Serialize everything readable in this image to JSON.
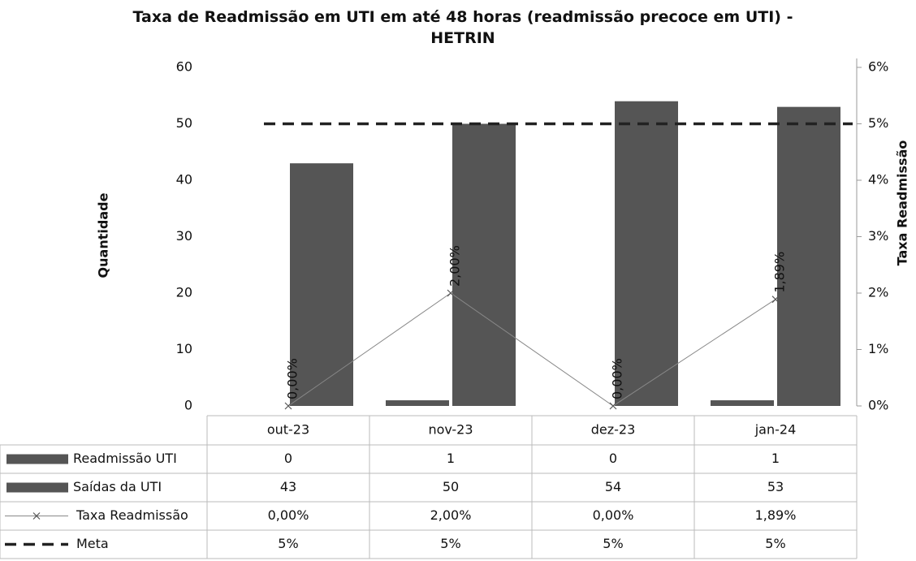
{
  "chart_data": {
    "type": "bar",
    "title": "Taxa de Readmissão em UTI em até 48 horas (readmissão precoce em UTI) - HETRIN",
    "ylabel": "Quantidade",
    "y2label": "Taxa Readmissão",
    "categories": [
      "out-23",
      "nov-23",
      "dez-23",
      "jan-24"
    ],
    "ylim": [
      0,
      60
    ],
    "yticks": [
      0,
      10,
      20,
      30,
      40,
      50,
      60
    ],
    "y2lim": [
      0,
      6
    ],
    "y2ticks": [
      {
        "value": 0,
        "label": "0%"
      },
      {
        "value": 1,
        "label": "1%"
      },
      {
        "value": 2,
        "label": "2%"
      },
      {
        "value": 3,
        "label": "3%"
      },
      {
        "value": 4,
        "label": "4%"
      },
      {
        "value": 5,
        "label": "5%"
      },
      {
        "value": 6,
        "label": "6%"
      }
    ],
    "series": [
      {
        "name": "Readmissão UTI",
        "type": "bar",
        "color": "#555555",
        "values": [
          0,
          1,
          0,
          1
        ]
      },
      {
        "name": "Saídas da UTI",
        "type": "bar",
        "color": "#555555",
        "values": [
          43,
          50,
          54,
          53
        ]
      },
      {
        "name": "Taxa Readmissão",
        "type": "line",
        "axis": "y2",
        "color": "#888888",
        "values": [
          0,
          2,
          0,
          1.89
        ],
        "value_labels": [
          "0,00%",
          "2,00%",
          "0,00%",
          "1,89%"
        ]
      },
      {
        "name": "Meta",
        "type": "line",
        "axis": "y2",
        "dashed": true,
        "color": "#222222",
        "values": [
          5,
          5,
          5,
          5
        ],
        "value_labels": [
          "5%",
          "5%",
          "5%",
          "5%"
        ]
      }
    ]
  }
}
